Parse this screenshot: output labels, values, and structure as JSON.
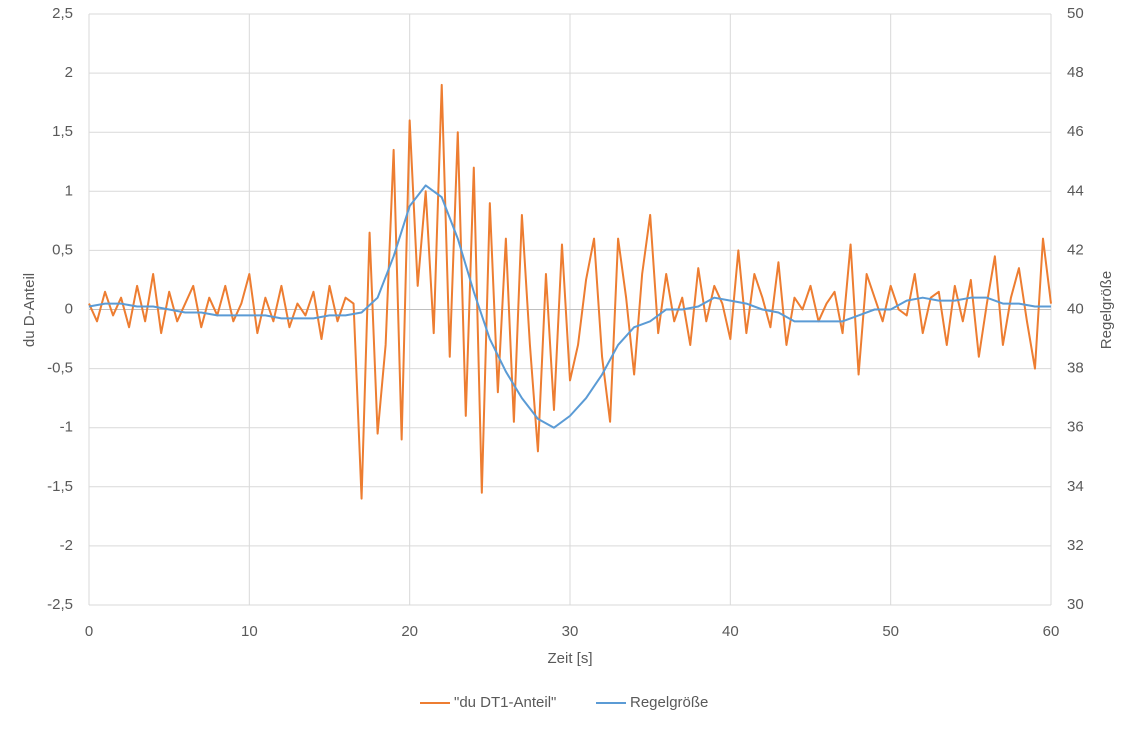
{
  "chart_data": {
    "type": "line",
    "xlabel": "Zeit [s]",
    "ylabel": "du D-Anteil",
    "y2label": "Regelgröße",
    "xlim": [
      0,
      60
    ],
    "xticks": [
      0,
      10,
      20,
      30,
      40,
      50,
      60
    ],
    "ylim": [
      -2.5,
      2.5
    ],
    "yticks": [
      {
        "value": -2.5,
        "label": "-2,5"
      },
      -2,
      {
        "value": -1.5,
        "label": "-1,5"
      },
      -1,
      {
        "value": -0.5,
        "label": "-0,5"
      },
      0,
      {
        "value": 0.5,
        "label": "0,5"
      },
      1,
      {
        "value": 1.5,
        "label": "1,5"
      },
      2,
      {
        "value": 2.5,
        "label": "2,5"
      }
    ],
    "y2lim": [
      30,
      50
    ],
    "y2ticks": [
      30,
      32,
      34,
      36,
      38,
      40,
      42,
      44,
      46,
      48,
      50
    ],
    "grid": true,
    "legend": "bottom",
    "series": [
      {
        "name": "\"du DT1-Anteil\"",
        "color": "#ed7d31",
        "x": [
          0,
          0.5,
          1,
          1.5,
          2,
          2.5,
          3,
          3.5,
          4,
          4.5,
          5,
          5.5,
          6,
          6.5,
          7,
          7.5,
          8,
          8.5,
          9,
          9.5,
          10,
          10.5,
          11,
          11.5,
          12,
          12.5,
          13,
          13.5,
          14,
          14.5,
          15,
          15.5,
          16,
          16.5,
          17,
          17.5,
          18,
          18.5,
          19,
          19.5,
          20,
          20.5,
          21,
          21.5,
          22,
          22.5,
          23,
          23.5,
          24,
          24.5,
          25,
          25.5,
          26,
          26.5,
          27,
          27.5,
          28,
          28.5,
          29,
          29.5,
          30,
          30.5,
          31,
          31.5,
          32,
          32.5,
          33,
          33.5,
          34,
          34.5,
          35,
          35.5,
          36,
          36.5,
          37,
          37.5,
          38,
          38.5,
          39,
          39.5,
          40,
          40.5,
          41,
          41.5,
          42,
          42.5,
          43,
          43.5,
          44,
          44.5,
          45,
          45.5,
          46,
          46.5,
          47,
          47.5,
          48,
          48.5,
          49,
          49.5,
          50,
          50.5,
          51,
          51.5,
          52,
          52.5,
          53,
          53.5,
          54,
          54.5,
          55,
          55.5,
          56,
          56.5,
          57,
          57.5,
          58,
          58.5,
          59,
          59.5,
          60
        ],
        "values": [
          0.05,
          -0.1,
          0.15,
          -0.05,
          0.1,
          -0.15,
          0.2,
          -0.1,
          0.3,
          -0.2,
          0.15,
          -0.1,
          0.05,
          0.2,
          -0.15,
          0.1,
          -0.05,
          0.2,
          -0.1,
          0.05,
          0.3,
          -0.2,
          0.1,
          -0.1,
          0.2,
          -0.15,
          0.05,
          -0.05,
          0.15,
          -0.25,
          0.2,
          -0.1,
          0.1,
          0.05,
          -1.6,
          0.65,
          -1.05,
          -0.3,
          1.35,
          -1.1,
          1.6,
          0.2,
          1.0,
          -0.2,
          1.9,
          -0.4,
          1.5,
          -0.9,
          1.2,
          -1.55,
          0.9,
          -0.7,
          0.6,
          -0.95,
          0.8,
          -0.3,
          -1.2,
          0.3,
          -0.85,
          0.55,
          -0.6,
          -0.3,
          0.25,
          0.6,
          -0.4,
          -0.95,
          0.6,
          0.1,
          -0.55,
          0.3,
          0.8,
          -0.2,
          0.3,
          -0.1,
          0.1,
          -0.3,
          0.35,
          -0.1,
          0.2,
          0.05,
          -0.25,
          0.5,
          -0.2,
          0.3,
          0.1,
          -0.15,
          0.4,
          -0.3,
          0.1,
          0.0,
          0.2,
          -0.1,
          0.05,
          0.15,
          -0.2,
          0.55,
          -0.55,
          0.3,
          0.1,
          -0.1,
          0.2,
          0.0,
          -0.05,
          0.3,
          -0.2,
          0.1,
          0.15,
          -0.3,
          0.2,
          -0.1,
          0.25,
          -0.4,
          0.05,
          0.45,
          -0.3,
          0.1,
          0.35,
          -0.1,
          -0.5,
          0.6,
          0.05
        ]
      },
      {
        "name": "Regelgröße",
        "color": "#5b9bd5",
        "axis": "y2",
        "x": [
          0,
          1,
          2,
          3,
          4,
          5,
          6,
          7,
          8,
          9,
          10,
          11,
          12,
          13,
          14,
          15,
          16,
          17,
          18,
          19,
          20,
          21,
          22,
          23,
          24,
          25,
          26,
          27,
          28,
          29,
          30,
          31,
          32,
          33,
          34,
          35,
          36,
          37,
          38,
          39,
          40,
          41,
          42,
          43,
          44,
          45,
          46,
          47,
          48,
          49,
          50,
          51,
          52,
          53,
          54,
          55,
          56,
          57,
          58,
          59,
          60
        ],
        "values": [
          40.1,
          40.2,
          40.2,
          40.1,
          40.1,
          40.0,
          39.9,
          39.9,
          39.8,
          39.8,
          39.8,
          39.8,
          39.7,
          39.7,
          39.7,
          39.8,
          39.8,
          39.9,
          40.4,
          41.8,
          43.5,
          44.2,
          43.8,
          42.4,
          40.6,
          39.0,
          37.9,
          37.0,
          36.3,
          36.0,
          36.4,
          37.0,
          37.8,
          38.8,
          39.4,
          39.6,
          40.0,
          40.0,
          40.1,
          40.4,
          40.3,
          40.2,
          40.0,
          39.9,
          39.6,
          39.6,
          39.6,
          39.6,
          39.8,
          40.0,
          40.0,
          40.3,
          40.4,
          40.3,
          40.3,
          40.4,
          40.4,
          40.2,
          40.2,
          40.1,
          40.1
        ]
      }
    ]
  }
}
